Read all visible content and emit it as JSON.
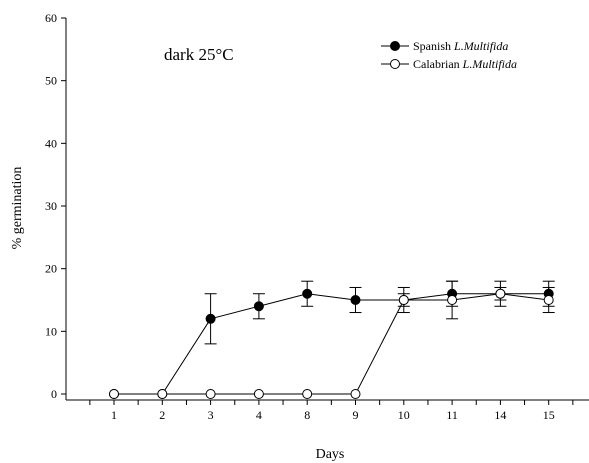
{
  "chart_data": {
    "type": "line",
    "annotation": "dark 25°C",
    "xlabel": "Days",
    "ylabel": "% germination",
    "categories": [
      "1",
      "2",
      "3",
      "4",
      "8",
      "9",
      "10",
      "11",
      "14",
      "15"
    ],
    "ylim": [
      0,
      60
    ],
    "yticks": [
      0,
      10,
      20,
      30,
      40,
      50,
      60
    ],
    "grid": false,
    "legend_position": "top-right",
    "series": [
      {
        "name_plain": "Spanish ",
        "name_italic": "L.Multifida",
        "marker": "filled-circle",
        "values": [
          0,
          0,
          12,
          14,
          16,
          15,
          15,
          16,
          16,
          16
        ],
        "errors": [
          0,
          0,
          4,
          2,
          2,
          2,
          2,
          2,
          2,
          2
        ]
      },
      {
        "name_plain": "Calabrian ",
        "name_italic": "L.Multifida",
        "marker": "open-circle",
        "values": [
          0,
          0,
          0,
          0,
          0,
          0,
          15,
          15,
          16,
          15
        ],
        "errors": [
          0,
          0,
          0,
          0,
          0,
          0,
          1,
          3,
          1,
          2
        ]
      }
    ]
  }
}
